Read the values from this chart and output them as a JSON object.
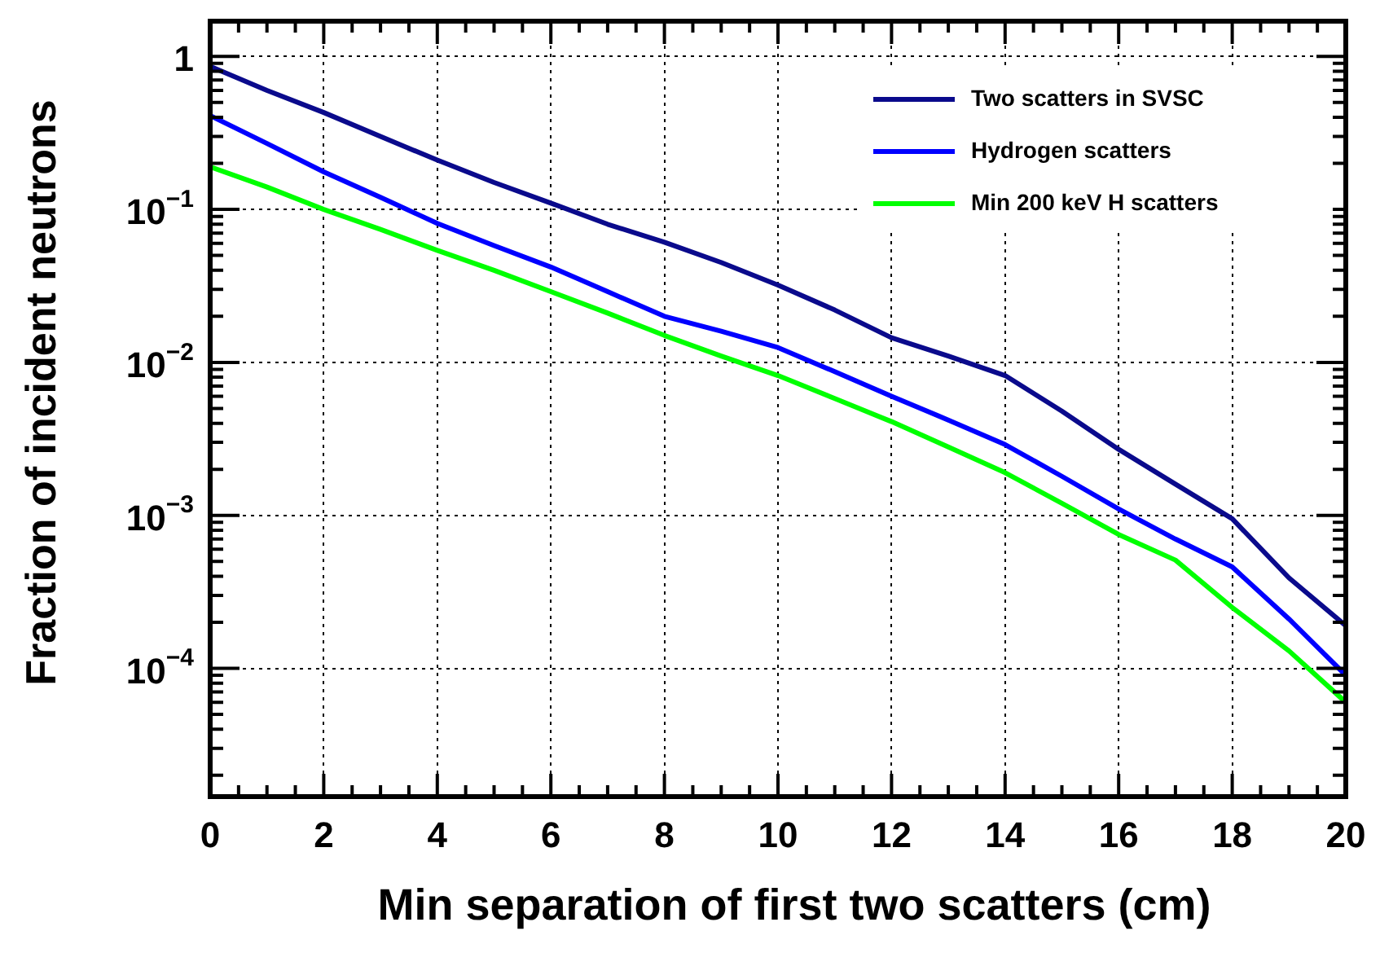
{
  "chart_data": {
    "type": "line",
    "xlabel": "Min separation of first two scatters (cm)",
    "ylabel": "Fraction of incident neutrons",
    "log": "y",
    "grid": true,
    "legend": "top right",
    "x": [
      0,
      1,
      2,
      3,
      4,
      5,
      6,
      7,
      8,
      9,
      10,
      11,
      12,
      13,
      14,
      15,
      16,
      17,
      18,
      19,
      20
    ],
    "xlim": [
      0,
      20
    ],
    "ylim": [
      1.45e-05,
      1.7
    ],
    "xticks": [
      0,
      {
        "value": 0.5,
        "label": null
      },
      {
        "value": 1,
        "label": null
      },
      {
        "value": 1.5,
        "label": null
      },
      2,
      {
        "value": 2.5,
        "label": null
      },
      {
        "value": 3,
        "label": null
      },
      {
        "value": 3.5,
        "label": null
      },
      4,
      {
        "value": 4.5,
        "label": null
      },
      {
        "value": 5,
        "label": null
      },
      {
        "value": 5.5,
        "label": null
      },
      6,
      {
        "value": 6.5,
        "label": null
      },
      {
        "value": 7,
        "label": null
      },
      {
        "value": 7.5,
        "label": null
      },
      8,
      {
        "value": 8.5,
        "label": null
      },
      {
        "value": 9,
        "label": null
      },
      {
        "value": 9.5,
        "label": null
      },
      10,
      {
        "value": 10.5,
        "label": null
      },
      {
        "value": 11,
        "label": null
      },
      {
        "value": 11.5,
        "label": null
      },
      12,
      {
        "value": 12.5,
        "label": null
      },
      {
        "value": 13,
        "label": null
      },
      {
        "value": 13.5,
        "label": null
      },
      14,
      {
        "value": 14.5,
        "label": null
      },
      {
        "value": 15,
        "label": null
      },
      {
        "value": 15.5,
        "label": null
      },
      16,
      {
        "value": 16.5,
        "label": null
      },
      {
        "value": 17,
        "label": null
      },
      {
        "value": 17.5,
        "label": null
      },
      18,
      {
        "value": 18.5,
        "label": null
      },
      {
        "value": 19,
        "label": null
      },
      {
        "value": 19.5,
        "label": null
      },
      20
    ],
    "yticks": [
      {
        "value": 2e-05,
        "label": null
      },
      {
        "value": 3e-05,
        "label": null
      },
      {
        "value": 4e-05,
        "label": null
      },
      {
        "value": 5e-05,
        "label": null
      },
      {
        "value": 6e-05,
        "label": null
      },
      {
        "value": 7e-05,
        "label": null
      },
      {
        "value": 8e-05,
        "label": null
      },
      {
        "value": 9e-05,
        "label": null
      },
      {
        "value": 0.0001,
        "label": "10$^{−4}$"
      },
      {
        "value": 0.0002,
        "label": null
      },
      {
        "value": 0.0003,
        "label": null
      },
      {
        "value": 0.0004,
        "label": null
      },
      {
        "value": 0.0005,
        "label": null
      },
      {
        "value": 0.0006,
        "label": null
      },
      {
        "value": 0.0007,
        "label": null
      },
      {
        "value": 0.0008,
        "label": null
      },
      {
        "value": 0.0009,
        "label": null
      },
      {
        "value": 0.001,
        "label": "10$^{−3}$"
      },
      {
        "value": 0.002,
        "label": null
      },
      {
        "value": 0.003,
        "label": null
      },
      {
        "value": 0.004,
        "label": null
      },
      {
        "value": 0.005,
        "label": null
      },
      {
        "value": 0.006,
        "label": null
      },
      {
        "value": 0.007,
        "label": null
      },
      {
        "value": 0.008,
        "label": null
      },
      {
        "value": 0.009,
        "label": null
      },
      {
        "value": 0.01,
        "label": "10$^{−2}$"
      },
      {
        "value": 0.02,
        "label": null
      },
      {
        "value": 0.03,
        "label": null
      },
      {
        "value": 0.04,
        "label": null
      },
      {
        "value": 0.05,
        "label": null
      },
      {
        "value": 0.06,
        "label": null
      },
      {
        "value": 0.07,
        "label": null
      },
      {
        "value": 0.08,
        "label": null
      },
      {
        "value": 0.09,
        "label": null
      },
      {
        "value": 0.1,
        "label": "10$^{−1}$"
      },
      {
        "value": 0.2,
        "label": null
      },
      {
        "value": 0.3,
        "label": null
      },
      {
        "value": 0.4,
        "label": null
      },
      {
        "value": 0.5,
        "label": null
      },
      {
        "value": 0.6,
        "label": null
      },
      {
        "value": 0.7,
        "label": null
      },
      {
        "value": 0.8,
        "label": null
      },
      {
        "value": 0.9,
        "label": null
      },
      1
    ],
    "series": [
      {
        "name": "Two scatters in SVSC",
        "color": "#0a0a8c",
        "values": [
          0.86,
          0.6,
          0.43,
          0.3,
          0.21,
          0.15,
          0.11,
          0.08,
          0.061,
          0.045,
          0.032,
          0.022,
          0.0145,
          0.011,
          0.0082,
          0.0048,
          0.0027,
          0.0016,
          0.00095,
          0.00039,
          0.00019
        ]
      },
      {
        "name": "Hydrogen scatters",
        "color": "#0000ff",
        "values": [
          0.41,
          0.27,
          0.176,
          0.12,
          0.081,
          0.058,
          0.042,
          0.029,
          0.02,
          0.016,
          0.0125,
          0.0087,
          0.006,
          0.0042,
          0.0029,
          0.0018,
          0.0011,
          0.0007,
          0.00046,
          0.00021,
          9e-05
        ]
      },
      {
        "name": "Min 200 keV H scatters",
        "color": "#00ff00",
        "values": [
          0.19,
          0.14,
          0.1,
          0.074,
          0.054,
          0.04,
          0.029,
          0.021,
          0.015,
          0.011,
          0.0082,
          0.0058,
          0.0041,
          0.0028,
          0.0019,
          0.0012,
          0.00075,
          0.00051,
          0.00025,
          0.00013,
          6e-05
        ]
      }
    ]
  }
}
